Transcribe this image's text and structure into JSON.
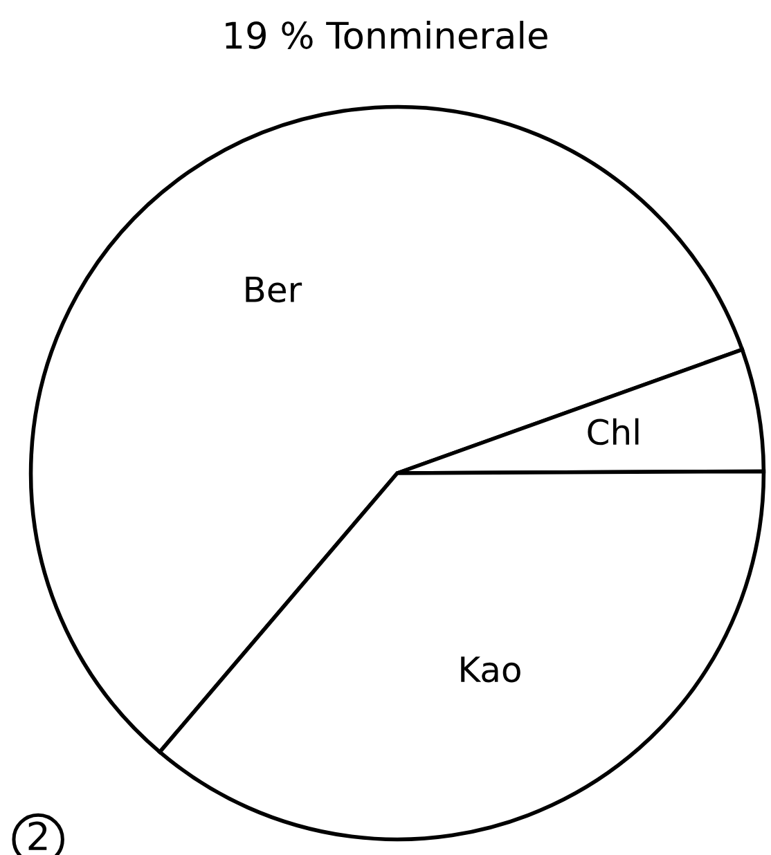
{
  "chart_data": {
    "type": "pie",
    "title": "19 % Tonminerale",
    "categories": [
      "Ber",
      "Chl",
      "Kao"
    ],
    "values": [
      58.3,
      5.4,
      36.3
    ],
    "colors": [
      "#ffffff",
      "#ffffff",
      "#ffffff"
    ],
    "annotations": [
      "2"
    ]
  }
}
